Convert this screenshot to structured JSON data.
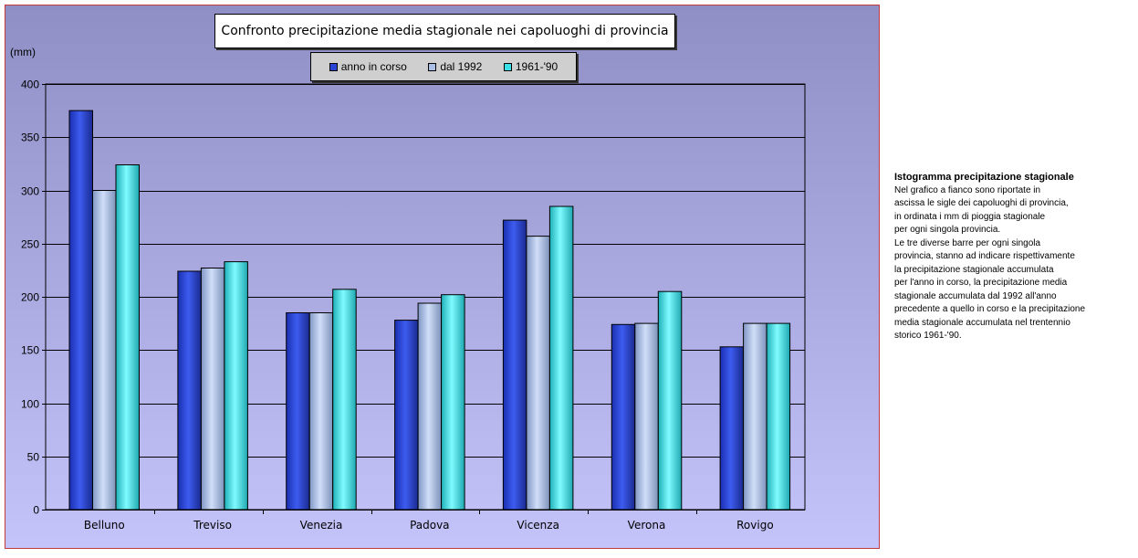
{
  "chart_data": {
    "type": "bar",
    "title": "Confronto precipitazione media stagionale nei capoluoghi di provincia",
    "unit_label": "(mm)",
    "categories": [
      "Belluno",
      "Treviso",
      "Venezia",
      "Padova",
      "Vicenza",
      "Verona",
      "Rovigo"
    ],
    "series": [
      {
        "name": "anno in corso",
        "values": [
          375,
          224,
          185,
          178,
          272,
          174,
          153
        ]
      },
      {
        "name": "dal 1992",
        "values": [
          300,
          227,
          185,
          194,
          257,
          175,
          175
        ]
      },
      {
        "name": "1961-'90",
        "values": [
          324,
          233,
          207,
          202,
          285,
          205,
          175
        ]
      }
    ],
    "ylim": [
      0,
      400
    ],
    "yticks": [
      0,
      50,
      100,
      150,
      200,
      250,
      300,
      350,
      400
    ],
    "grid": true,
    "legend_position": "top"
  },
  "colors": {
    "series": [
      "#2a45d6",
      "#aac0e6",
      "#3ae0e8"
    ],
    "background_top": "#8f8fc6",
    "background_bottom": "#c4c4fa",
    "frame_border": "#c23a3a"
  },
  "side_panel": {
    "title": "Istogramma precipitazione stagionale",
    "lines": [
      "Nel grafico a fianco sono riportate in",
      "ascissa le sigle dei capoluoghi di provincia,",
      "in ordinata i mm di pioggia stagionale",
      "per ogni singola provincia.",
      "Le tre diverse barre per ogni singola",
      "provincia, stanno ad indicare rispettivamente",
      "la precipitazione stagionale accumulata",
      "per l'anno in corso, la precipitazione media",
      "stagionale accumulata dal 1992 all'anno",
      "precedente a quello in corso e la precipitazione",
      "media stagionale accumulata nel trentennio",
      "storico 1961-'90."
    ]
  }
}
